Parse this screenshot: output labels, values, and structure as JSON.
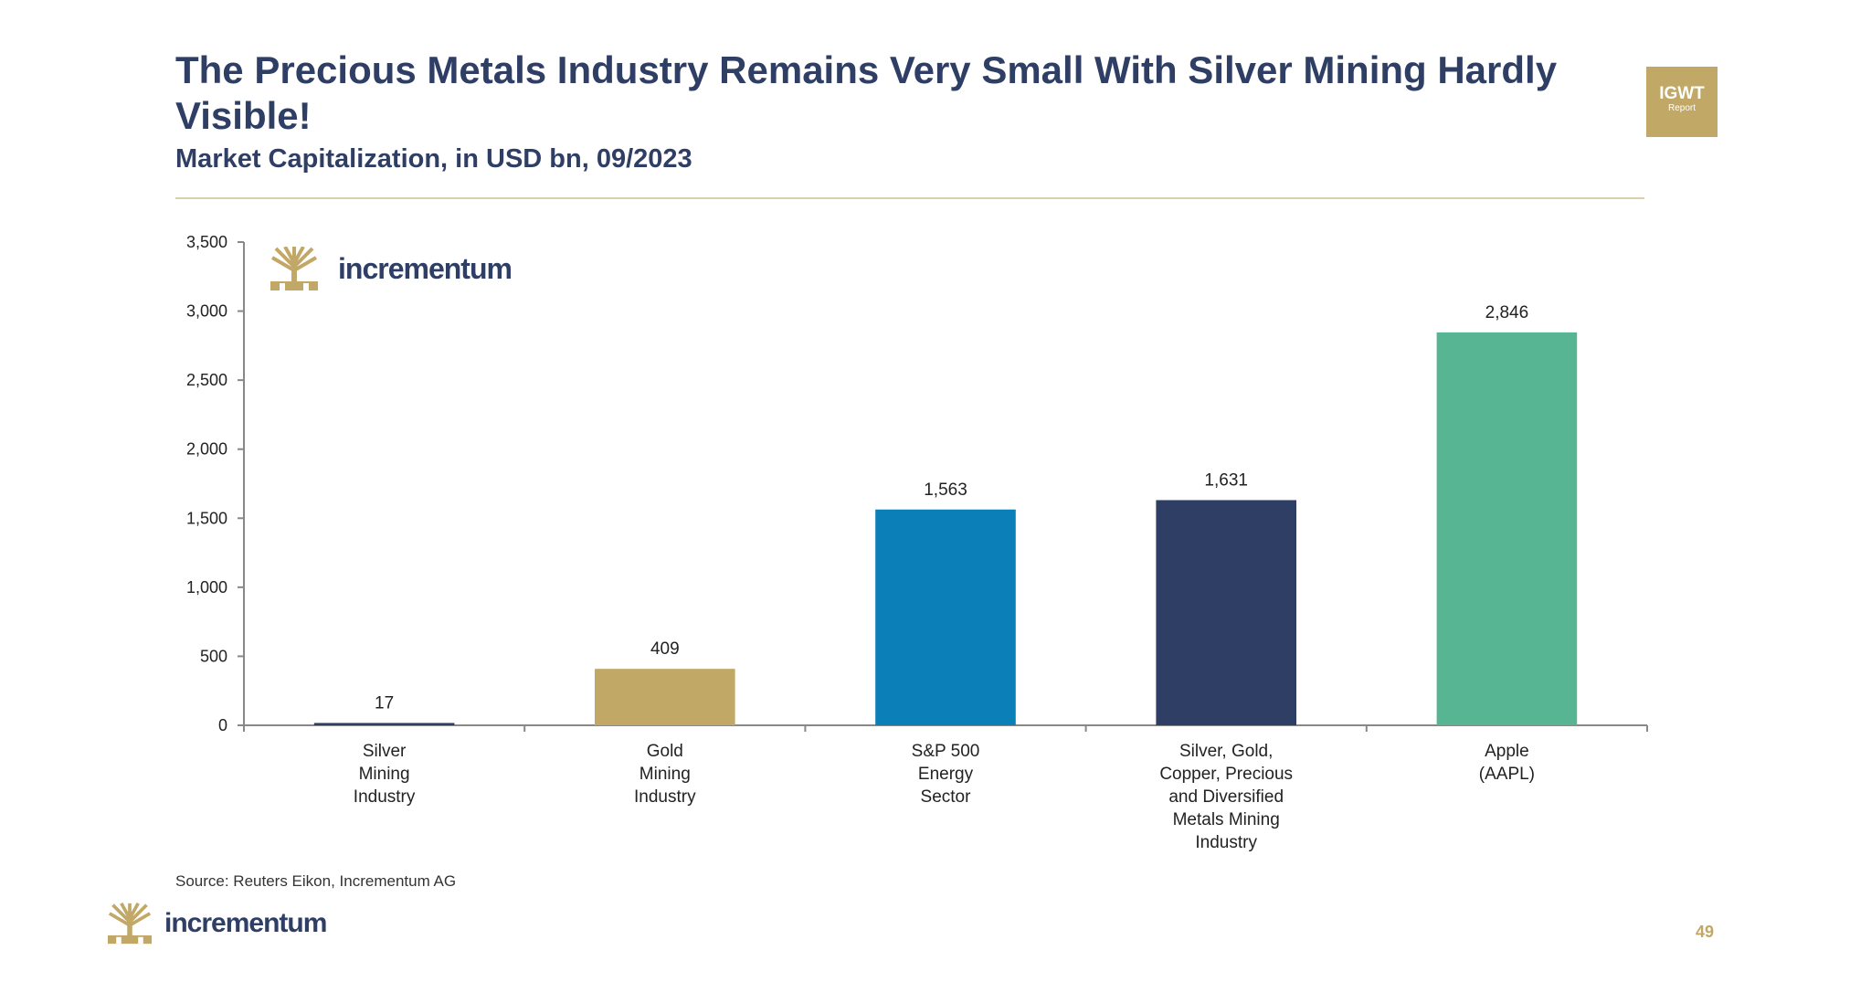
{
  "header": {
    "title": "The Precious Metals Industry Remains Very Small With Silver Mining Hardly Visible!",
    "subtitle": "Market Capitalization, in USD bn, 09/2023"
  },
  "badge": {
    "main": "IGWT",
    "sub": "Report"
  },
  "brand": {
    "name": "incrementum",
    "logo_color": "#c2a866",
    "text_color": "#2e3e65"
  },
  "chart_data": {
    "type": "bar",
    "title": "Market Capitalization, in USD bn, 09/2023",
    "xlabel": "",
    "ylabel": "",
    "ylim": [
      0,
      3500
    ],
    "yticks": [
      0,
      500,
      1000,
      1500,
      2000,
      2500,
      3000,
      3500
    ],
    "ytick_labels": [
      "0",
      "500",
      "1,000",
      "1,500",
      "2,000",
      "2,500",
      "3,000",
      "3,500"
    ],
    "grid": false,
    "categories": [
      [
        "Silver",
        "Mining",
        "Industry"
      ],
      [
        "Gold",
        "Mining",
        "Industry"
      ],
      [
        "S&P 500",
        "Energy",
        "Sector"
      ],
      [
        "Silver, Gold,",
        "Copper, Precious",
        "and Diversified",
        "Metals Mining",
        "Industry"
      ],
      [
        "Apple",
        "(AAPL)"
      ]
    ],
    "values": [
      17,
      409,
      1563,
      1631,
      2846
    ],
    "value_labels": [
      "17",
      "409",
      "1,563",
      "1,631",
      "2,846"
    ],
    "colors": [
      "#2e3e65",
      "#c2a866",
      "#0b80b8",
      "#2e3e65",
      "#58b594"
    ]
  },
  "footer": {
    "source": "Source: Reuters Eikon, Incrementum AG",
    "page_number": "49"
  }
}
